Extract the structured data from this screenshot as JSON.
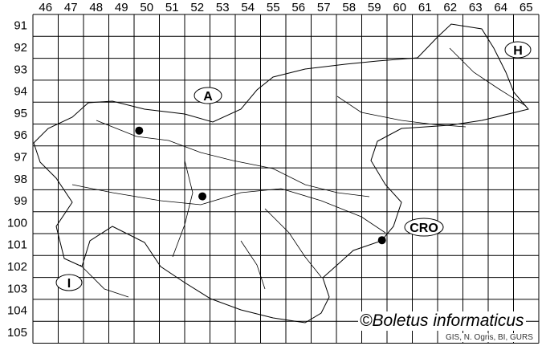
{
  "map": {
    "columns": [
      46,
      47,
      48,
      49,
      50,
      51,
      52,
      53,
      54,
      55,
      56,
      57,
      58,
      59,
      60,
      61,
      62,
      63,
      64,
      65
    ],
    "rows": [
      91,
      92,
      93,
      94,
      95,
      96,
      97,
      98,
      99,
      100,
      101,
      102,
      103,
      104,
      105
    ],
    "country_labels": [
      "A",
      "H",
      "CRO",
      "I"
    ],
    "records": [
      {
        "grid_col": 50.2,
        "grid_row": 96.3
      },
      {
        "grid_col": 52.7,
        "grid_row": 99.3
      },
      {
        "grid_col": 59.8,
        "grid_row": 101.3
      }
    ],
    "colors": {
      "lines": "#000000",
      "background": "#ffffff"
    }
  },
  "copyright": "©Boletus informaticus",
  "credit": "GIS, N. Ogris, BI, GURS"
}
